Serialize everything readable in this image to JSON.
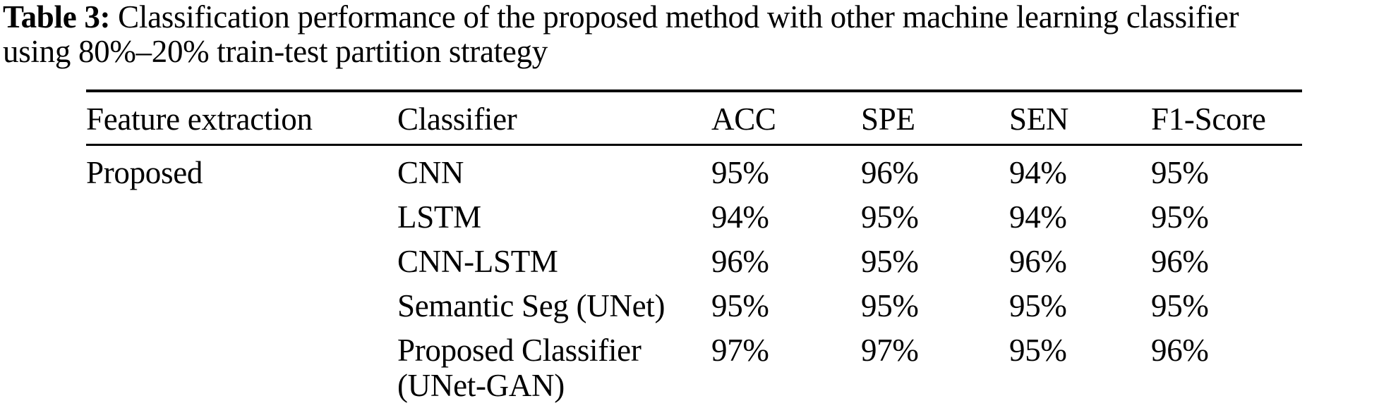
{
  "caption": {
    "label": "Table 3:",
    "line1_rest": " Classification performance of the proposed method with other machine learning classifier",
    "line2": "using 80%–20% train-test partition strategy"
  },
  "table": {
    "headers": [
      "Feature extraction",
      "Classifier",
      "ACC",
      "SPE",
      "SEN",
      "F1-Score"
    ],
    "feature_extraction_group": "Proposed",
    "rows": [
      {
        "classifier": "CNN",
        "acc": "95%",
        "spe": "96%",
        "sen": "94%",
        "f1_score": "95%"
      },
      {
        "classifier": "LSTM",
        "acc": "94%",
        "spe": "95%",
        "sen": "94%",
        "f1_score": "95%"
      },
      {
        "classifier": "CNN-LSTM",
        "acc": "96%",
        "spe": "95%",
        "sen": "96%",
        "f1_score": "96%"
      },
      {
        "classifier": "Semantic Seg (UNet)",
        "acc": "95%",
        "spe": "95%",
        "sen": "95%",
        "f1_score": "95%"
      },
      {
        "classifier": "Proposed Classifier (UNet-GAN)",
        "acc": "97%",
        "spe": "97%",
        "sen": "95%",
        "f1_score": "96%"
      }
    ],
    "text_color": "#000000",
    "background_color": "#ffffff"
  }
}
